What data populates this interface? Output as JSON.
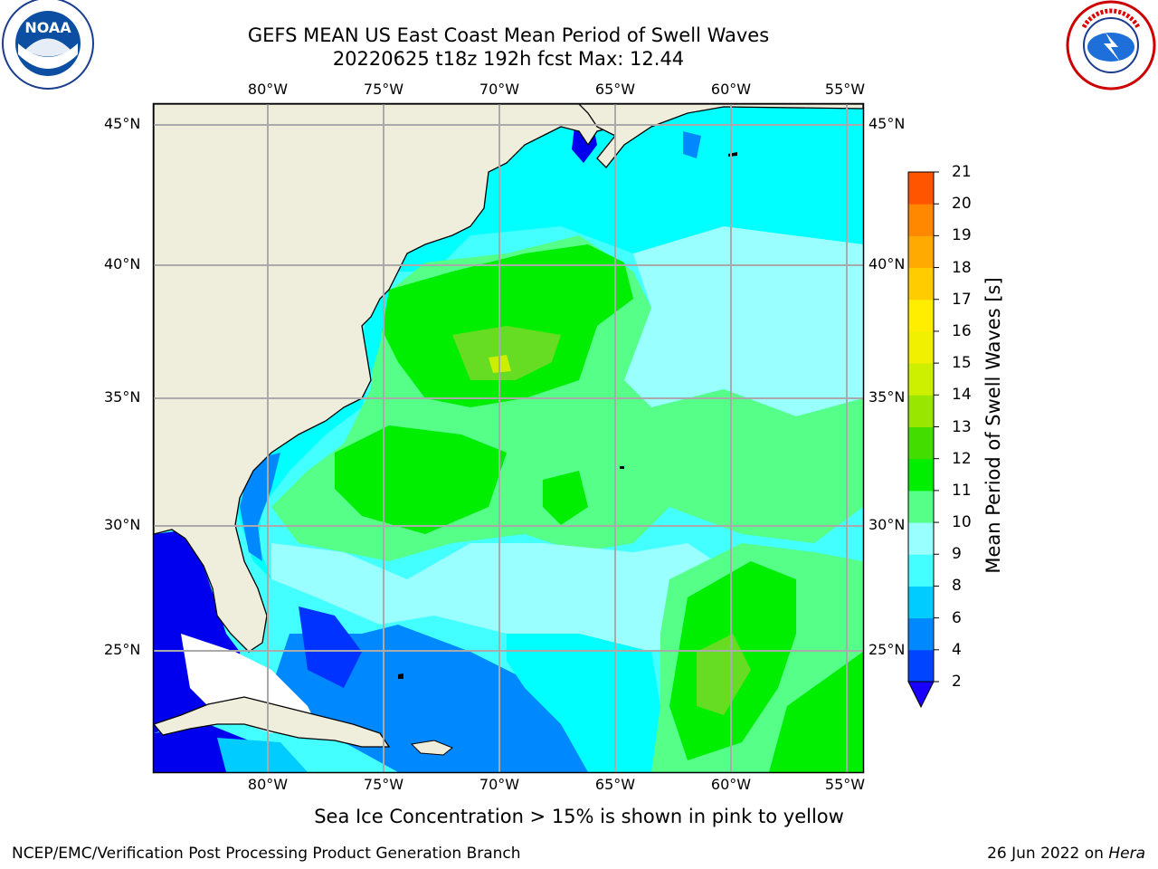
{
  "title": {
    "line1": "GEFS MEAN US East Coast Mean Period of Swell Waves",
    "line2": "20220625 t18z 192h fcst   Max: 12.44"
  },
  "axes": {
    "longitude_labels": [
      "80°W",
      "75°W",
      "70°W",
      "65°W",
      "60°W",
      "55°W"
    ],
    "latitude_labels": [
      "45°N",
      "40°N",
      "35°N",
      "30°N",
      "25°N"
    ]
  },
  "colorbar": {
    "title": "Mean Period of Swell Waves [s]",
    "levels": [
      "2",
      "4",
      "6",
      "8",
      "9",
      "10",
      "11",
      "12",
      "13",
      "14",
      "15",
      "16",
      "17",
      "18",
      "19",
      "20",
      "21"
    ],
    "colors": [
      "#0044ff",
      "#0088ff",
      "#00ccff",
      "#44ffff",
      "#99ffff",
      "#55ff88",
      "#00ee00",
      "#44dd00",
      "#99e600",
      "#ccf000",
      "#f0f000",
      "#ffee00",
      "#ffcc00",
      "#ffaa00",
      "#ff8800",
      "#ff5500",
      "#ff2200",
      "#ff0000"
    ],
    "extend_color": "#1a00ff"
  },
  "note": "Sea Ice Concentration > 15% is shown in pink to yellow",
  "footer": {
    "left": "NCEP/EMC/Verification Post Processing Product Generation Branch",
    "date": "26 Jun 2022 on ",
    "host": "Hera"
  },
  "logos": {
    "left": "NOAA",
    "right_text": "NATIONAL WEATHER SERVICE"
  },
  "land_color": "#efeddb",
  "no_data_color": "#ffffff"
}
